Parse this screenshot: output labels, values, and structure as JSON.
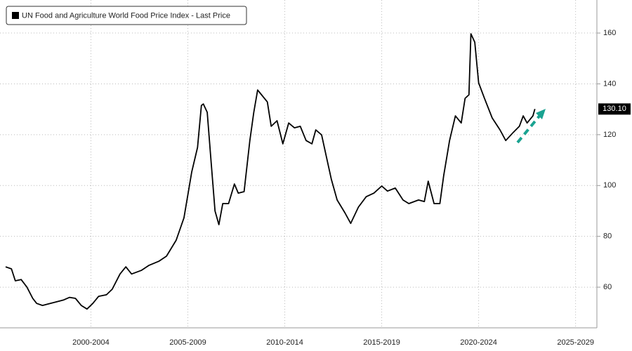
{
  "chart_data": {
    "type": "line",
    "legend_title": "UN Food and Agriculture World Food Price Index - Last Price",
    "x": [
      1998.1,
      1998.4,
      1998.6,
      1998.9,
      1999.2,
      1999.5,
      1999.7,
      2000.0,
      2000.4,
      2000.7,
      2001.1,
      2001.4,
      2001.7,
      2002.0,
      2002.3,
      2002.6,
      2002.9,
      2003.3,
      2003.6,
      2004.0,
      2004.3,
      2004.6,
      2005.1,
      2005.5,
      2006.0,
      2006.4,
      2006.9,
      2007.3,
      2007.7,
      2008.0,
      2008.2,
      2008.3,
      2008.5,
      2008.7,
      2008.9,
      2009.1,
      2009.3,
      2009.6,
      2009.9,
      2010.1,
      2010.4,
      2010.7,
      2010.9,
      2011.1,
      2011.3,
      2011.6,
      2011.8,
      2012.1,
      2012.4,
      2012.7,
      2013.0,
      2013.3,
      2013.6,
      2013.9,
      2014.1,
      2014.4,
      2014.7,
      2014.9,
      2015.2,
      2015.6,
      2015.9,
      2016.3,
      2016.7,
      2017.1,
      2017.5,
      2017.8,
      2018.2,
      2018.6,
      2018.9,
      2019.4,
      2019.7,
      2019.9,
      2020.2,
      2020.5,
      2020.7,
      2021.0,
      2021.3,
      2021.6,
      2021.8,
      2022.0,
      2022.1,
      2022.3,
      2022.5,
      2022.8,
      2023.2,
      2023.6,
      2023.9,
      2024.3,
      2024.6,
      2024.8,
      2025.0,
      2025.3,
      2025.4
    ],
    "series": [
      {
        "name": "UN Food and Agriculture World Food Price Index - Last Price",
        "color": "#000000",
        "values": [
          68,
          67.2,
          62.5,
          63,
          60,
          55.6,
          53.6,
          52.8,
          53.6,
          54.2,
          55,
          56,
          55.6,
          52.8,
          51.4,
          53.6,
          56.4,
          57,
          59.2,
          65.2,
          68,
          65.2,
          66.6,
          68.6,
          70.2,
          72.2,
          78.5,
          87.3,
          105.3,
          115,
          131.5,
          132.1,
          128.8,
          109.4,
          90,
          84.6,
          92.9,
          92.9,
          100.6,
          97,
          97.6,
          117.7,
          128.8,
          137.6,
          135.7,
          132.9,
          123.3,
          125.5,
          116.4,
          124.6,
          122.7,
          123.3,
          117.7,
          116.4,
          121.9,
          119.9,
          109.4,
          102.5,
          94.3,
          89.3,
          85.1,
          91.5,
          95.6,
          97,
          99.8,
          97.8,
          99,
          94.3,
          92.9,
          94.3,
          93.7,
          101.7,
          92.9,
          92.9,
          104,
          117.7,
          127.4,
          124.6,
          134.3,
          135.7,
          159.7,
          156.4,
          140.4,
          134.3,
          126.6,
          121.9,
          117.7,
          121,
          123.3,
          127.4,
          124.6,
          127.4,
          130.1
        ]
      }
    ],
    "last_value_label": "130.10",
    "xlim": [
      1998.1,
      2028.6
    ],
    "xticks": [
      {
        "value": 2002.5,
        "label": "2000-2004"
      },
      {
        "value": 2007.5,
        "label": "2005-2009"
      },
      {
        "value": 2012.5,
        "label": "2010-2014"
      },
      {
        "value": 2017.5,
        "label": "2015-2019"
      },
      {
        "value": 2022.5,
        "label": "2020-2024"
      },
      {
        "value": 2027.5,
        "label": "2025-2029"
      }
    ],
    "ylim": [
      44,
      173
    ],
    "yticks": [
      60,
      80,
      100,
      120,
      140,
      160
    ],
    "grid": true
  }
}
